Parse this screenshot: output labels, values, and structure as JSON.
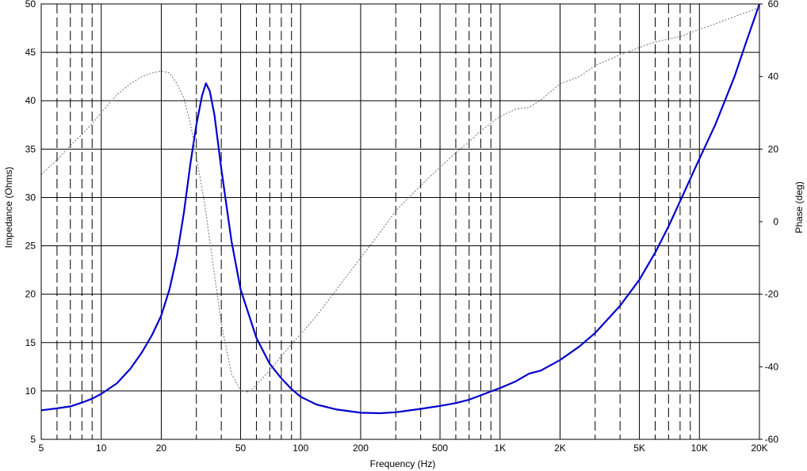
{
  "chart_data": {
    "type": "line",
    "xlabel": "Frequency (Hz)",
    "ylabel": "Impedance (Ohms)",
    "y2label": "Phase (deg)",
    "x_scale": "log",
    "xlim": [
      5,
      20000
    ],
    "ylim": [
      5,
      50
    ],
    "y2lim": [
      -60,
      60
    ],
    "grid": true,
    "x_ticks": [
      {
        "value": 5,
        "label": "5"
      },
      {
        "value": 10,
        "label": "10"
      },
      {
        "value": 20,
        "label": "20"
      },
      {
        "value": 50,
        "label": "50"
      },
      {
        "value": 100,
        "label": "100"
      },
      {
        "value": 200,
        "label": "200"
      },
      {
        "value": 500,
        "label": "500"
      },
      {
        "value": 1000,
        "label": "1K"
      },
      {
        "value": 2000,
        "label": "2K"
      },
      {
        "value": 5000,
        "label": "5K"
      },
      {
        "value": 10000,
        "label": "10K"
      },
      {
        "value": 20000,
        "label": "20K"
      }
    ],
    "y_ticks": [
      5,
      10,
      15,
      20,
      25,
      30,
      35,
      40,
      45,
      50
    ],
    "y2_ticks": [
      -60,
      -40,
      -20,
      0,
      20,
      40,
      60
    ],
    "colors": {
      "impedance": "#0000cc",
      "phase": "#707070",
      "grid": "#000000"
    },
    "series": [
      {
        "axis": "left",
        "values": [
          [
            5,
            8.0
          ],
          [
            6,
            8.2
          ],
          [
            7,
            8.4
          ],
          [
            8,
            8.8
          ],
          [
            9,
            9.2
          ],
          [
            10,
            9.7
          ],
          [
            12,
            10.8
          ],
          [
            14,
            12.3
          ],
          [
            16,
            14.0
          ],
          [
            18,
            15.8
          ],
          [
            20,
            17.8
          ],
          [
            22,
            20.5
          ],
          [
            24,
            24.0
          ],
          [
            26,
            28.5
          ],
          [
            28,
            33.5
          ],
          [
            30,
            37.5
          ],
          [
            32,
            40.5
          ],
          [
            33.5,
            41.8
          ],
          [
            35,
            41.0
          ],
          [
            37,
            38.5
          ],
          [
            40,
            33.0
          ],
          [
            45,
            25.5
          ],
          [
            50,
            20.5
          ],
          [
            60,
            15.5
          ],
          [
            70,
            12.8
          ],
          [
            80,
            11.3
          ],
          [
            90,
            10.2
          ],
          [
            100,
            9.4
          ],
          [
            120,
            8.6
          ],
          [
            150,
            8.1
          ],
          [
            200,
            7.75
          ],
          [
            250,
            7.7
          ],
          [
            300,
            7.8
          ],
          [
            400,
            8.15
          ],
          [
            500,
            8.45
          ],
          [
            600,
            8.75
          ],
          [
            700,
            9.1
          ],
          [
            800,
            9.55
          ],
          [
            1000,
            10.3
          ],
          [
            1200,
            11.0
          ],
          [
            1400,
            11.8
          ],
          [
            1600,
            12.1
          ],
          [
            2000,
            13.2
          ],
          [
            2500,
            14.6
          ],
          [
            3000,
            16.0
          ],
          [
            4000,
            18.8
          ],
          [
            5000,
            21.5
          ],
          [
            6000,
            24.3
          ],
          [
            7000,
            27.0
          ],
          [
            8000,
            29.6
          ],
          [
            10000,
            34.0
          ],
          [
            12000,
            37.5
          ],
          [
            15000,
            42.5
          ],
          [
            17000,
            45.8
          ],
          [
            20000,
            50.0
          ]
        ]
      },
      {
        "axis": "right",
        "values": [
          [
            5,
            13
          ],
          [
            6,
            17
          ],
          [
            7,
            21
          ],
          [
            8,
            24
          ],
          [
            9,
            27
          ],
          [
            10,
            30
          ],
          [
            12,
            35
          ],
          [
            14,
            38
          ],
          [
            16,
            40
          ],
          [
            18,
            41
          ],
          [
            20,
            41.5
          ],
          [
            22,
            41
          ],
          [
            24,
            38
          ],
          [
            26,
            34
          ],
          [
            28,
            27
          ],
          [
            30,
            18
          ],
          [
            33,
            5
          ],
          [
            36,
            -10
          ],
          [
            40,
            -28
          ],
          [
            45,
            -42
          ],
          [
            50,
            -46.5
          ],
          [
            55,
            -47
          ],
          [
            60,
            -45
          ],
          [
            70,
            -41
          ],
          [
            80,
            -37
          ],
          [
            100,
            -31
          ],
          [
            120,
            -26
          ],
          [
            150,
            -19
          ],
          [
            200,
            -10
          ],
          [
            250,
            -3
          ],
          [
            300,
            3
          ],
          [
            400,
            10
          ],
          [
            500,
            15
          ],
          [
            600,
            19
          ],
          [
            700,
            22
          ],
          [
            800,
            25
          ],
          [
            1000,
            29
          ],
          [
            1200,
            31
          ],
          [
            1400,
            31.5
          ],
          [
            1600,
            33.5
          ],
          [
            2000,
            38
          ],
          [
            2500,
            40
          ],
          [
            3000,
            43
          ],
          [
            4000,
            46
          ],
          [
            5000,
            48
          ],
          [
            6000,
            49.5
          ],
          [
            8000,
            51
          ],
          [
            10000,
            53
          ],
          [
            12000,
            54.5
          ],
          [
            15000,
            56.5
          ],
          [
            20000,
            59
          ]
        ]
      }
    ]
  }
}
